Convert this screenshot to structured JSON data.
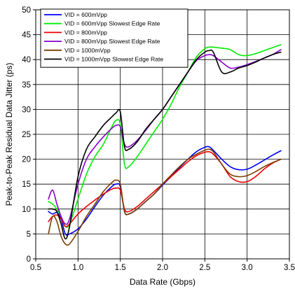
{
  "chart_data": {
    "type": "line",
    "xlabel": "Data Rate (Gbps)",
    "ylabel": "Peak-to-Peak Residual Data Jitter (ps)",
    "xlim": [
      0.5,
      3.5
    ],
    "ylim": [
      0,
      50
    ],
    "xticks": [
      "0.5",
      "1.0",
      "1.5",
      "2.0",
      "2.5",
      "3.0",
      "3.5"
    ],
    "yticks": [
      "0",
      "5",
      "10",
      "15",
      "20",
      "25",
      "30",
      "35",
      "40",
      "45",
      "50"
    ],
    "grid": true,
    "legend_position": "top-left",
    "series": [
      {
        "name": "VID = 600mVpp",
        "color": "#0000ff",
        "x": [
          0.65,
          0.7,
          0.75,
          0.8,
          0.85,
          0.9,
          1.0,
          1.1,
          1.2,
          1.3,
          1.4,
          1.45,
          1.5,
          1.55,
          1.6,
          1.7,
          1.8,
          1.9,
          2.0,
          2.1,
          2.2,
          2.3,
          2.4,
          2.5,
          2.55,
          2.6,
          2.7,
          2.8,
          2.9,
          3.0,
          3.1,
          3.2,
          3.3,
          3.4
        ],
        "y": [
          9.5,
          9.0,
          9.3,
          8.0,
          5.0,
          5.0,
          6.0,
          8.0,
          10.5,
          12.8,
          14.5,
          15.0,
          14.5,
          9.5,
          9.0,
          10.0,
          11.5,
          13.0,
          14.8,
          16.5,
          18.3,
          20.0,
          21.5,
          22.4,
          22.5,
          21.8,
          20.0,
          18.5,
          17.9,
          18.0,
          18.8,
          19.8,
          20.8,
          21.7
        ]
      },
      {
        "name": "VID = 600mVpp Slowest Edge Rate",
        "color": "#00ee00",
        "x": [
          0.65,
          0.7,
          0.75,
          0.8,
          0.85,
          0.9,
          1.0,
          1.1,
          1.2,
          1.3,
          1.4,
          1.45,
          1.5,
          1.55,
          1.6,
          1.7,
          1.8,
          1.9,
          2.0,
          2.1,
          2.2,
          2.3,
          2.4,
          2.5,
          2.55,
          2.6,
          2.7,
          2.8,
          2.9,
          3.0,
          3.1,
          3.2,
          3.3,
          3.4
        ],
        "y": [
          11.5,
          11.0,
          10.0,
          8.5,
          6.5,
          7.0,
          12.0,
          17.0,
          20.5,
          23.0,
          26.5,
          27.8,
          27.0,
          19.0,
          18.5,
          20.5,
          23.0,
          25.5,
          28.0,
          31.0,
          34.5,
          37.5,
          40.5,
          42.2,
          42.5,
          42.5,
          42.3,
          42.0,
          41.0,
          40.8,
          41.2,
          41.8,
          42.4,
          43.0
        ]
      },
      {
        "name": "VID = 800mVpp",
        "color": "#ee0000",
        "x": [
          0.65,
          0.7,
          0.75,
          0.8,
          0.85,
          0.9,
          1.0,
          1.1,
          1.2,
          1.3,
          1.4,
          1.45,
          1.5,
          1.55,
          1.6,
          1.7,
          1.8,
          1.9,
          2.0,
          2.1,
          2.2,
          2.3,
          2.4,
          2.5,
          2.55,
          2.6,
          2.7,
          2.8,
          2.9,
          3.0,
          3.1,
          3.2,
          3.3,
          3.4
        ],
        "y": [
          7.5,
          8.5,
          8.8,
          8.0,
          6.5,
          7.0,
          9.0,
          10.5,
          11.8,
          13.0,
          14.0,
          14.2,
          13.8,
          10.0,
          9.5,
          10.5,
          12.0,
          13.5,
          15.0,
          16.5,
          18.0,
          19.5,
          20.7,
          21.4,
          21.5,
          21.0,
          19.0,
          16.5,
          15.5,
          15.5,
          16.5,
          18.0,
          19.2,
          20.0
        ]
      },
      {
        "name": "VID = 800mVpp Slowest Edge Rate",
        "color": "#8800cc",
        "x": [
          0.65,
          0.7,
          0.75,
          0.8,
          0.85,
          0.9,
          1.0,
          1.1,
          1.2,
          1.3,
          1.4,
          1.45,
          1.5,
          1.55,
          1.6,
          1.7,
          1.8,
          1.9,
          2.0,
          2.1,
          2.2,
          2.3,
          2.4,
          2.5,
          2.55,
          2.6,
          2.7,
          2.8,
          2.9,
          3.0,
          3.1,
          3.2,
          3.3,
          3.4
        ],
        "y": [
          12.0,
          13.8,
          11.0,
          8.5,
          7.0,
          8.0,
          15.0,
          20.0,
          22.5,
          24.5,
          26.2,
          26.8,
          26.5,
          23.0,
          22.5,
          23.8,
          25.8,
          28.0,
          30.0,
          32.5,
          35.0,
          37.5,
          39.8,
          40.8,
          41.0,
          40.8,
          39.5,
          38.3,
          38.5,
          39.0,
          39.6,
          40.3,
          41.0,
          42.0
        ]
      },
      {
        "name": "VID = 1000mVpp",
        "color": "#7a3e00",
        "x": [
          0.65,
          0.7,
          0.75,
          0.8,
          0.85,
          0.9,
          1.0,
          1.1,
          1.2,
          1.3,
          1.4,
          1.45,
          1.5,
          1.55,
          1.6,
          1.7,
          1.8,
          1.9,
          2.0,
          2.1,
          2.2,
          2.3,
          2.4,
          2.5,
          2.55,
          2.6,
          2.7,
          2.8,
          2.9,
          3.0,
          3.1,
          3.2,
          3.3,
          3.4
        ],
        "y": [
          5.0,
          8.5,
          7.5,
          4.5,
          3.0,
          3.0,
          5.5,
          8.5,
          11.0,
          13.5,
          15.3,
          15.8,
          15.0,
          9.5,
          9.0,
          10.0,
          11.5,
          13.0,
          15.0,
          16.8,
          18.5,
          20.0,
          21.0,
          21.8,
          22.0,
          21.5,
          19.0,
          17.0,
          16.5,
          16.7,
          17.5,
          18.5,
          19.3,
          20.0
        ]
      },
      {
        "name": "VID = 1000mVpp Slowest Edge Rate",
        "color": "#000000",
        "x": [
          0.65,
          0.7,
          0.75,
          0.8,
          0.85,
          0.9,
          1.0,
          1.1,
          1.2,
          1.3,
          1.4,
          1.45,
          1.5,
          1.55,
          1.6,
          1.7,
          1.8,
          1.9,
          2.0,
          2.1,
          2.2,
          2.3,
          2.4,
          2.5,
          2.55,
          2.6,
          2.7,
          2.8,
          2.9,
          3.0,
          3.1,
          3.2,
          3.3,
          3.4
        ],
        "y": [
          10.0,
          10.0,
          9.5,
          7.0,
          4.0,
          6.5,
          16.5,
          22.0,
          24.5,
          26.8,
          28.5,
          29.3,
          29.5,
          22.5,
          22.0,
          23.5,
          26.0,
          28.0,
          30.0,
          32.5,
          35.0,
          37.5,
          40.0,
          41.5,
          41.8,
          41.5,
          37.5,
          37.5,
          38.3,
          38.8,
          39.5,
          40.3,
          41.0,
          41.5
        ]
      }
    ]
  }
}
